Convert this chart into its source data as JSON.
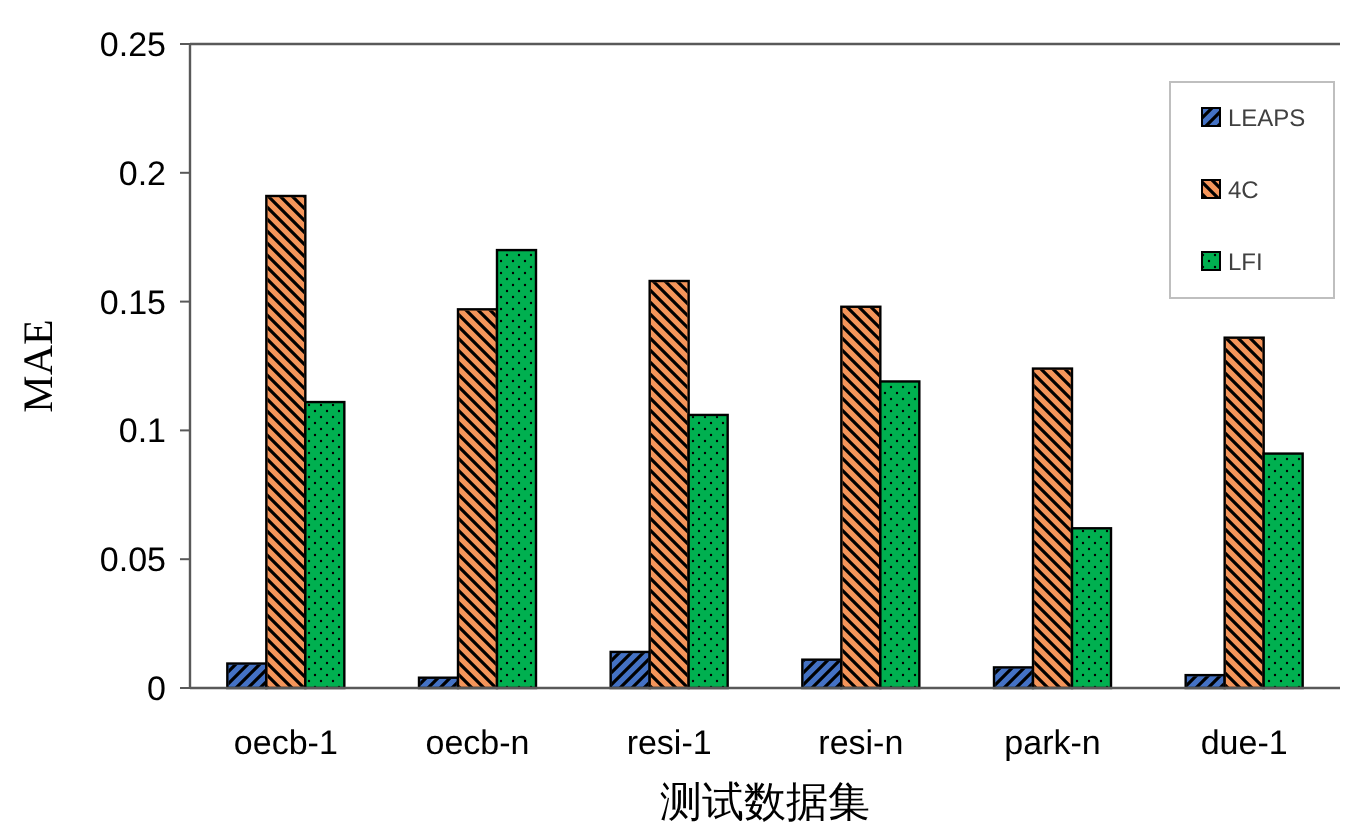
{
  "chart_data": {
    "type": "bar",
    "xlabel": "测试数据集",
    "ylabel": "MAE",
    "categories": [
      "oecb-1",
      "oecb-n",
      "resi-1",
      "resi-n",
      "park-n",
      "due-1"
    ],
    "series": [
      {
        "name": "LEAPS",
        "color": "#4472c4",
        "values": [
          0.0095,
          0.004,
          0.014,
          0.011,
          0.008,
          0.005
        ]
      },
      {
        "name": "4C",
        "color": "#f4955a",
        "values": [
          0.191,
          0.147,
          0.158,
          0.148,
          0.124,
          0.136
        ]
      },
      {
        "name": "LFI",
        "color": "#00b050",
        "values": [
          0.111,
          0.17,
          0.106,
          0.119,
          0.062,
          0.091
        ]
      }
    ],
    "ylim": [
      0,
      0.25
    ],
    "yticks": [
      0,
      0.05,
      0.1,
      0.15,
      0.2,
      0.25
    ],
    "legend": "top right",
    "grid": false
  }
}
